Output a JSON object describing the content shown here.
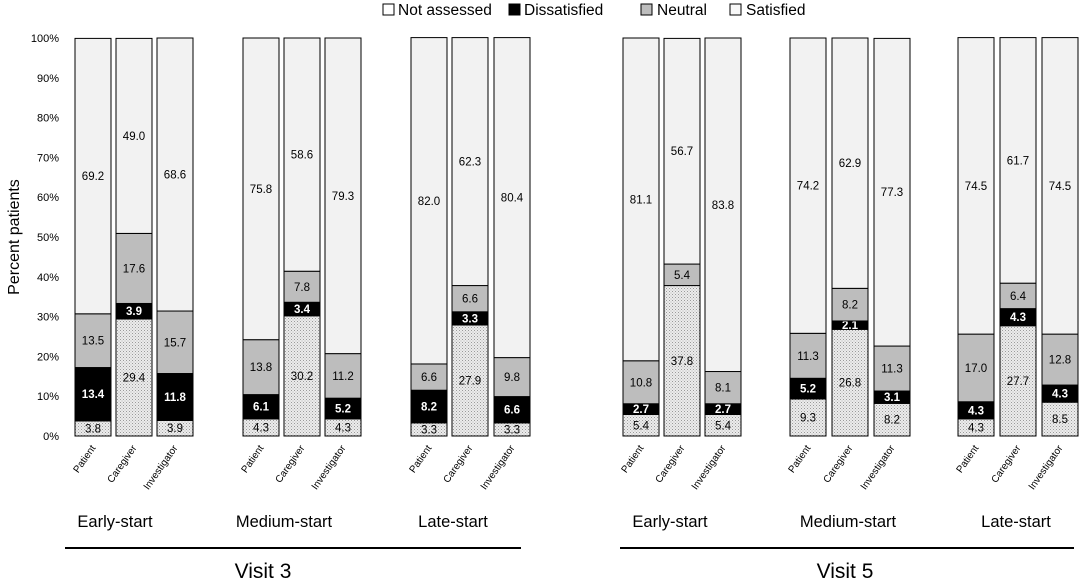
{
  "chart_data": {
    "type": "bar",
    "stacked": true,
    "ylabel": "Percent patients",
    "ylim": [
      0,
      100
    ],
    "yticks": [
      "0%",
      "10%",
      "20%",
      "30%",
      "40%",
      "50%",
      "60%",
      "70%",
      "80%",
      "90%",
      "100%"
    ],
    "grid": false,
    "legend_position": "top",
    "series": [
      {
        "name": "Satisfied",
        "color": "#e6e6e6",
        "pattern": "dots",
        "label_color": "#000000"
      },
      {
        "name": "Dissatisfied",
        "color": "#000000",
        "label_color": "#ffffff"
      },
      {
        "name": "Neutral",
        "color": "#bdbdbd",
        "label_color": "#000000"
      },
      {
        "name": "Not assessed",
        "color": "#f2f2f2",
        "label_color": "#000000"
      }
    ],
    "legend_order": [
      "Not assessed",
      "Dissatisfied",
      "Neutral",
      "Satisfied"
    ],
    "visits": [
      {
        "label": "Visit 3",
        "groups": [
          {
            "label": "Early-start",
            "bars": [
              {
                "category": "Patient",
                "values": [
                  3.8,
                  13.4,
                  13.5,
                  69.2
                ],
                "labels": [
                  "3.8",
                  "13.4",
                  "13.5",
                  "69.2"
                ]
              },
              {
                "category": "Caregiver",
                "values": [
                  29.4,
                  3.9,
                  17.6,
                  49.0
                ],
                "labels": [
                  "29.4",
                  "3.9",
                  "17.6",
                  "49.0"
                ]
              },
              {
                "category": "Investigator",
                "values": [
                  3.9,
                  11.8,
                  15.7,
                  68.6
                ],
                "labels": [
                  "3.9",
                  "11.8",
                  "15.7",
                  "68.6"
                ]
              }
            ]
          },
          {
            "label": "Medium-start",
            "bars": [
              {
                "category": "Patient",
                "values": [
                  4.3,
                  6.1,
                  13.8,
                  75.8
                ],
                "labels": [
                  "4.3",
                  "6.1",
                  "13.8",
                  "75.8"
                ]
              },
              {
                "category": "Caregiver",
                "values": [
                  30.2,
                  3.4,
                  7.8,
                  58.6
                ],
                "labels": [
                  "30.2",
                  "3.4",
                  "7.8",
                  "58.6"
                ]
              },
              {
                "category": "Investigator",
                "values": [
                  4.3,
                  5.2,
                  11.2,
                  79.3
                ],
                "labels": [
                  "4.3",
                  "5.2",
                  "11.2",
                  "79.3"
                ]
              }
            ]
          },
          {
            "label": "Late-start",
            "bars": [
              {
                "category": "Patient",
                "values": [
                  3.3,
                  8.2,
                  6.6,
                  82.0
                ],
                "labels": [
                  "3.3",
                  "8.2",
                  "6.6",
                  "82.0"
                ]
              },
              {
                "category": "Caregiver",
                "values": [
                  27.9,
                  3.3,
                  6.6,
                  62.3
                ],
                "labels": [
                  "27.9",
                  "3.3",
                  "6.6",
                  "62.3"
                ]
              },
              {
                "category": "Investigator",
                "values": [
                  3.3,
                  6.6,
                  9.8,
                  80.4
                ],
                "labels": [
                  "3.3",
                  "6.6",
                  "9.8",
                  "80.4"
                ]
              }
            ]
          }
        ]
      },
      {
        "label": "Visit 5",
        "groups": [
          {
            "label": "Early-start",
            "bars": [
              {
                "category": "Patient",
                "values": [
                  5.4,
                  2.7,
                  10.8,
                  81.1
                ],
                "labels": [
                  "5.4",
                  "2.7",
                  "10.8",
                  "81.1"
                ]
              },
              {
                "category": "Caregiver",
                "values": [
                  37.8,
                  0,
                  5.4,
                  56.7
                ],
                "labels": [
                  "37.8",
                  "",
                  "5.4",
                  "56.7"
                ]
              },
              {
                "category": "Investigator",
                "values": [
                  5.4,
                  2.7,
                  8.1,
                  83.8
                ],
                "labels": [
                  "5.4",
                  "2.7",
                  "8.1",
                  "83.8"
                ]
              }
            ]
          },
          {
            "label": "Medium-start",
            "bars": [
              {
                "category": "Patient",
                "values": [
                  9.3,
                  5.2,
                  11.3,
                  74.2
                ],
                "labels": [
                  "9.3",
                  "5.2",
                  "11.3",
                  "74.2"
                ]
              },
              {
                "category": "Caregiver",
                "values": [
                  26.8,
                  2.1,
                  8.2,
                  62.9
                ],
                "labels": [
                  "26.8",
                  "2.1",
                  "8.2",
                  "62.9"
                ]
              },
              {
                "category": "Investigator",
                "values": [
                  8.2,
                  3.1,
                  11.3,
                  77.3
                ],
                "labels": [
                  "8.2",
                  "3.1",
                  "11.3",
                  "77.3"
                ]
              }
            ]
          },
          {
            "label": "Late-start",
            "bars": [
              {
                "category": "Patient",
                "values": [
                  4.3,
                  4.3,
                  17.0,
                  74.5
                ],
                "labels": [
                  "4.3",
                  "4.3",
                  "17.0",
                  "74.5"
                ]
              },
              {
                "category": "Caregiver",
                "values": [
                  27.7,
                  4.3,
                  6.4,
                  61.7
                ],
                "labels": [
                  "27.7",
                  "4.3",
                  "6.4",
                  "61.7"
                ]
              },
              {
                "category": "Investigator",
                "values": [
                  8.5,
                  4.3,
                  12.8,
                  74.5
                ],
                "labels": [
                  "8.5",
                  "4.3",
                  "12.8",
                  "74.5"
                ]
              }
            ]
          }
        ]
      }
    ]
  }
}
